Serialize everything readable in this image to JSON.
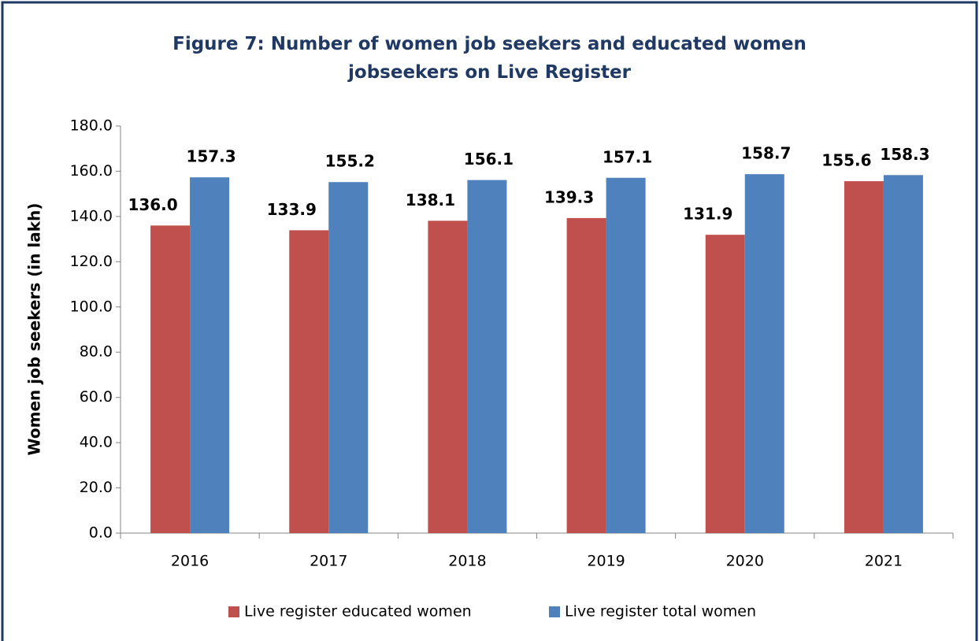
{
  "chart_data": {
    "type": "bar",
    "title": "Figure 7: Number of women job seekers and  educated women jobseekers on Live Register",
    "y_label": "Women job seekers (in lakh)",
    "categories": [
      "2016",
      "2017",
      "2018",
      "2019",
      "2020",
      "2021"
    ],
    "series": [
      {
        "name": "Live register educated women",
        "color": "#c0504d",
        "values": [
          136.0,
          133.9,
          138.1,
          139.3,
          131.9,
          155.6
        ],
        "value_labels": [
          "136.0",
          "133.9",
          "138.1",
          "139.3",
          "131.9",
          "155.6"
        ]
      },
      {
        "name": "Live register total women",
        "color": "#4f81bd",
        "values": [
          157.3,
          155.2,
          156.1,
          157.1,
          158.7,
          158.3
        ],
        "value_labels": [
          "157.3",
          "155.2",
          "156.1",
          "157.1",
          "158.7",
          "158.3"
        ]
      }
    ],
    "value_label_color": "#b5651d",
    "ylim": [
      0,
      180
    ],
    "yticks": [
      {
        "value": 0,
        "label": "0.0"
      },
      {
        "value": 20,
        "label": "20.0"
      },
      {
        "value": 40,
        "label": "40.0"
      },
      {
        "value": 60,
        "label": "60.0"
      },
      {
        "value": 80,
        "label": "80.0"
      },
      {
        "value": 100,
        "label": "100.0"
      },
      {
        "value": 120,
        "label": "120.0"
      },
      {
        "value": 140,
        "label": "140.0"
      },
      {
        "value": 160,
        "label": "160.0"
      },
      {
        "value": 180,
        "label": "180.0"
      }
    ],
    "grid": false,
    "legend": "bottom"
  }
}
